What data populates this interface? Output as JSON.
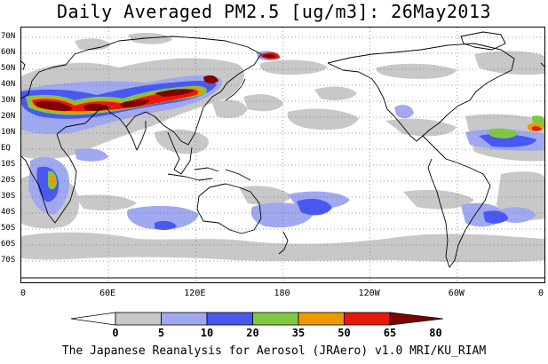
{
  "title": "Daily Averaged PM2.5 [ug/m3]: 26May2013",
  "lat_labels": [
    "70N",
    "60N",
    "50N",
    "40N",
    "30N",
    "20N",
    "10N",
    "EQ",
    "10S",
    "20S",
    "30S",
    "40S",
    "50S",
    "60S",
    "70S"
  ],
  "lon_labels": [
    "0",
    "60E",
    "120E",
    "180",
    "120W",
    "60W",
    "0"
  ],
  "colorbar": {
    "levels": [
      "0",
      "5",
      "10",
      "20",
      "35",
      "50",
      "65",
      "80"
    ],
    "colors": [
      "#ffffff",
      "#c8c8c8",
      "#a0a8f0",
      "#4858f0",
      "#80c840",
      "#f09800",
      "#e81808",
      "#800000"
    ]
  },
  "footer": "The Japanese Reanalysis for Aerosol (JRAero) v1.0 MRI/KU_RIAM"
}
